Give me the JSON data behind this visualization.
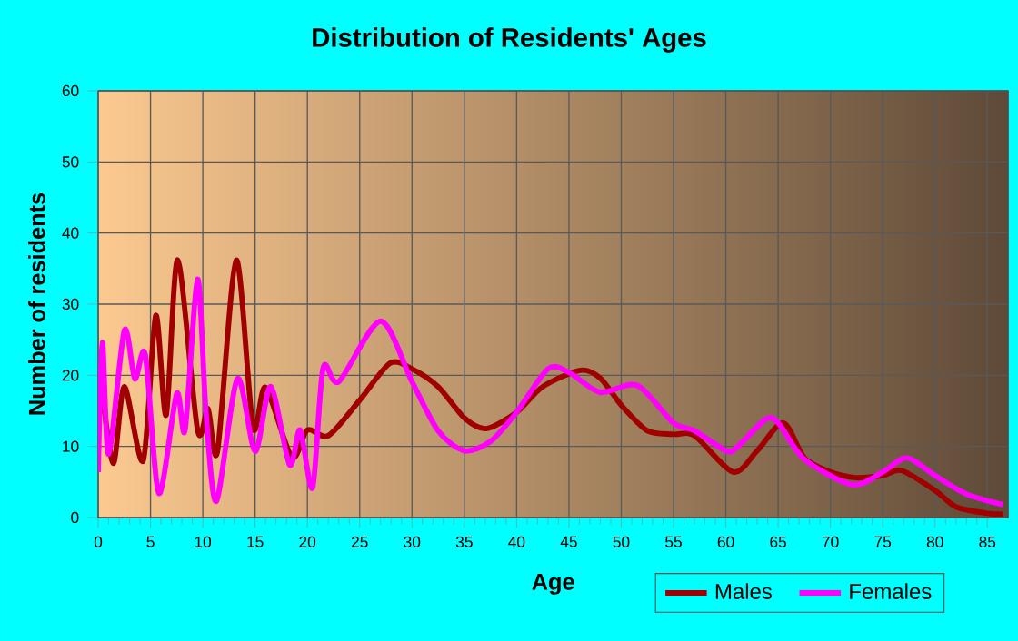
{
  "chart_data": {
    "type": "line",
    "title": "Distribution of Residents' Ages",
    "xlabel": "Age",
    "ylabel": "Number of residents",
    "xlim": [
      0,
      87
    ],
    "ylim": [
      0,
      60
    ],
    "xticks": [
      0,
      5,
      10,
      15,
      20,
      25,
      30,
      35,
      40,
      45,
      50,
      55,
      60,
      65,
      70,
      75,
      80,
      85
    ],
    "yticks": [
      0,
      10,
      20,
      30,
      40,
      50,
      60
    ],
    "grid": true,
    "legend": "bottom right",
    "marker": "none",
    "line_style": "solid",
    "series": [
      {
        "name": "Males",
        "color": "#a00000",
        "x": [
          0,
          0.3,
          1.45,
          2.5,
          4.3,
          5.5,
          6.5,
          7.6,
          9.5,
          10.5,
          11.4,
          13.2,
          14.8,
          16,
          18.5,
          20,
          22,
          25,
          27.9,
          30,
          32.5,
          35,
          37.1,
          40,
          42.5,
          46.1,
          48,
          50,
          52.5,
          55,
          57,
          60.7,
          63,
          65.5,
          67.5,
          70,
          72.4,
          75,
          76.8,
          80,
          82,
          85,
          86.5
        ],
        "values": [
          16.5,
          18,
          7.6,
          18.4,
          8,
          28.4,
          14.4,
          36.2,
          12.3,
          15.3,
          9.3,
          36.2,
          12.7,
          18.3,
          8.5,
          12.3,
          11.5,
          16.5,
          21.7,
          20.9,
          18.4,
          14,
          12.5,
          14.8,
          18.4,
          20.7,
          19.6,
          15.8,
          12.2,
          11.7,
          11.5,
          6.4,
          9.4,
          13.3,
          8.4,
          6.4,
          5.6,
          5.9,
          6.6,
          3.8,
          1.5,
          0.6,
          0.5
        ]
      },
      {
        "name": "Females",
        "color": "#ff00ff",
        "x": [
          0,
          0.4,
          1,
          2.5,
          3.5,
          4.5,
          5.8,
          7.5,
          8.3,
          9.5,
          10.3,
          11.3,
          13.3,
          15,
          16.5,
          18.3,
          19.3,
          20.5,
          21.5,
          23,
          27,
          30,
          32.5,
          35,
          37.5,
          40,
          43,
          45,
          48,
          51.5,
          55,
          57,
          60,
          61,
          63.8,
          65,
          67.5,
          72.1,
          75,
          77.3,
          80,
          83,
          86.5
        ],
        "values": [
          6.4,
          24.6,
          8.9,
          26.3,
          19.5,
          22.9,
          3.4,
          17.4,
          12.3,
          33.5,
          14.9,
          2.3,
          19.5,
          9.3,
          18.4,
          7.4,
          12.3,
          4.2,
          21,
          19.1,
          27.6,
          19.1,
          12.2,
          9.4,
          10.7,
          14.8,
          20.9,
          20.4,
          17.6,
          18.6,
          13.3,
          12.2,
          9.4,
          9.8,
          13.8,
          13.3,
          8.2,
          4.6,
          6.4,
          8.4,
          5.9,
          3.3,
          1.8
        ]
      }
    ]
  }
}
